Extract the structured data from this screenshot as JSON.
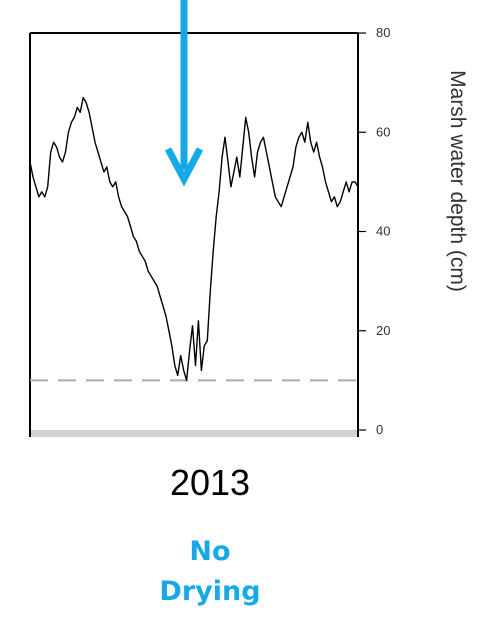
{
  "colors": {
    "accent": "#16a9e6",
    "line": "#000000",
    "threshold": "#aaaaaa"
  },
  "chart_data": {
    "type": "line",
    "ylabel": "Marsh water depth (cm)",
    "ylim": [
      0,
      80
    ],
    "yticks": [
      0,
      20,
      40,
      60,
      80
    ],
    "threshold": 10,
    "y_axis_position": "right",
    "grid": false,
    "x": [
      0,
      1,
      2,
      3,
      4,
      5,
      6,
      7,
      8,
      9,
      10,
      11,
      12,
      13,
      14,
      15,
      16,
      17,
      18,
      19,
      20,
      21,
      22,
      23,
      24,
      25,
      26,
      27,
      28,
      29,
      30,
      31,
      32,
      33,
      34,
      35,
      36,
      37,
      38,
      39,
      40,
      41,
      42,
      43,
      44,
      45,
      46,
      47,
      48,
      49,
      50,
      51,
      52,
      53,
      54,
      55,
      56,
      57,
      58,
      59,
      60,
      61,
      62,
      63,
      64,
      65,
      66,
      67,
      68,
      69,
      70,
      71,
      72,
      73,
      74,
      75,
      76,
      77,
      78,
      79,
      80,
      81,
      82,
      83,
      84,
      85,
      86,
      87,
      88,
      89,
      90,
      91,
      92,
      93,
      94,
      95,
      96,
      97,
      98,
      99,
      100,
      101,
      102,
      103,
      104,
      105,
      106,
      107,
      108,
      109,
      110,
      111
    ],
    "series": [
      {
        "values": [
          54,
          51,
          49,
          47,
          48,
          47,
          49,
          56,
          58,
          57,
          55,
          54,
          56,
          60,
          62,
          63,
          65,
          64,
          67,
          66,
          64,
          61,
          58,
          56,
          54,
          52,
          53,
          50,
          49,
          50,
          47,
          45,
          44,
          43,
          41,
          39,
          38,
          36,
          35,
          34,
          32,
          31,
          30,
          29,
          27,
          25,
          23,
          20,
          17,
          13,
          11,
          15,
          12,
          10,
          16,
          21,
          13,
          22,
          12,
          17,
          18,
          28,
          36,
          43,
          48,
          55,
          59,
          54,
          49,
          52,
          55,
          51,
          57,
          63,
          60,
          55,
          51,
          56,
          58,
          59,
          56,
          53,
          50,
          47,
          46,
          45,
          47,
          49,
          51,
          53,
          57,
          59,
          60,
          58,
          62,
          58,
          56,
          58,
          55,
          53,
          50,
          48,
          46,
          47,
          45,
          46,
          48,
          50,
          48,
          50,
          50,
          49
        ]
      }
    ]
  },
  "labels": {
    "year": "2013",
    "status_line1": "No",
    "status_line2": "Drying"
  }
}
